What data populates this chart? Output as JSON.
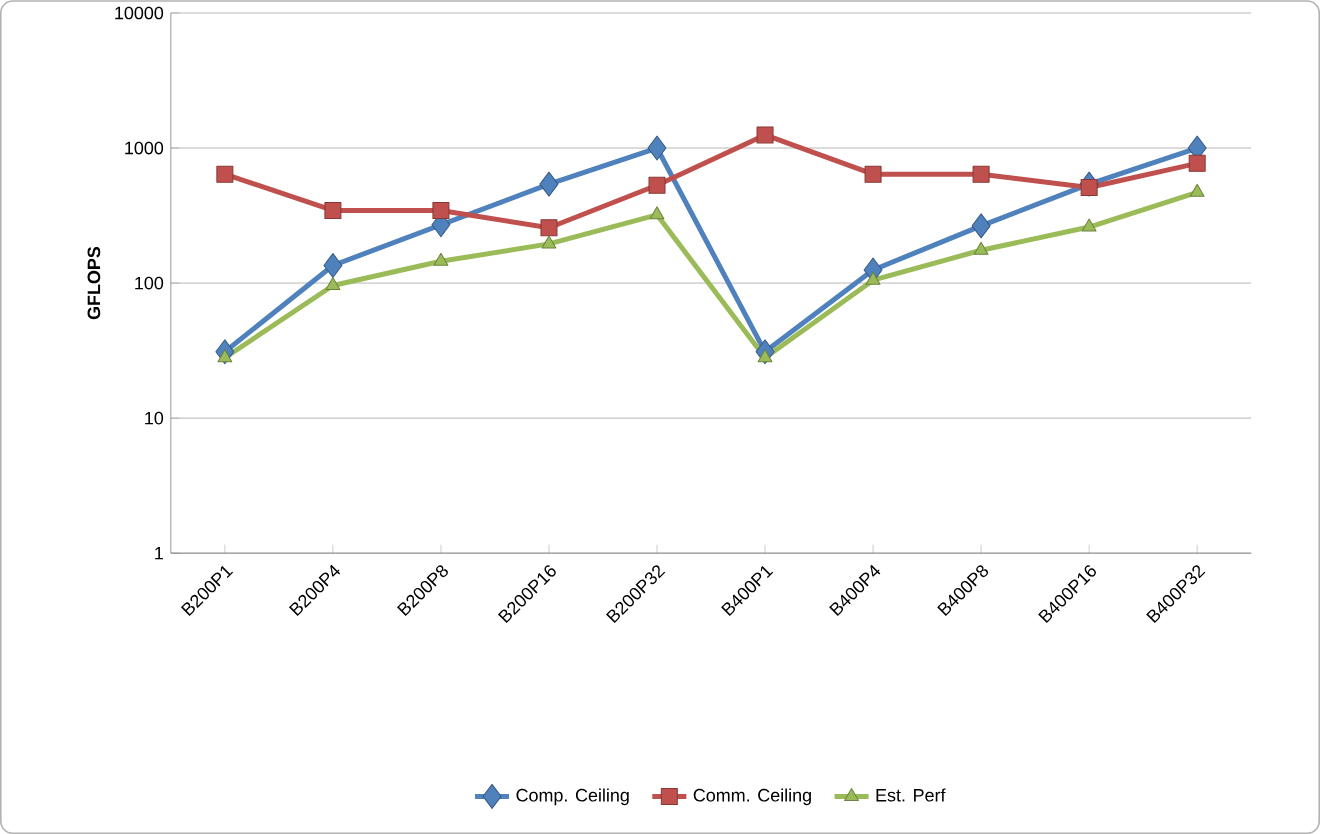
{
  "chart_data": {
    "type": "line",
    "ylabel": "GFLOPS",
    "log": "y",
    "grid": "y",
    "legend": "bottom",
    "categories": [
      "B200P1",
      "B200P4",
      "B200P8",
      "B200P16",
      "B200P32",
      "B400P1",
      "B400P4",
      "B400P8",
      "B400P16",
      "B400P32"
    ],
    "ylim": [
      1,
      10000
    ],
    "yticks": [
      1,
      10,
      100,
      1000,
      10000
    ],
    "series": [
      {
        "name": "Comp. Ceiling",
        "color": "#4f81bd",
        "marker": "diamond",
        "values": [
          31,
          135,
          270,
          540,
          1000,
          31,
          125,
          265,
          540,
          1000
        ]
      },
      {
        "name": "Comm. Ceiling",
        "color": "#c0504d",
        "marker": "square",
        "values": [
          640,
          345,
          345,
          257,
          530,
          1250,
          640,
          640,
          510,
          770
        ]
      },
      {
        "name": "Est. Perf",
        "color": "#9bbb59",
        "marker": "triangle",
        "values": [
          28,
          96,
          145,
          195,
          320,
          28,
          105,
          175,
          260,
          470
        ]
      }
    ]
  }
}
